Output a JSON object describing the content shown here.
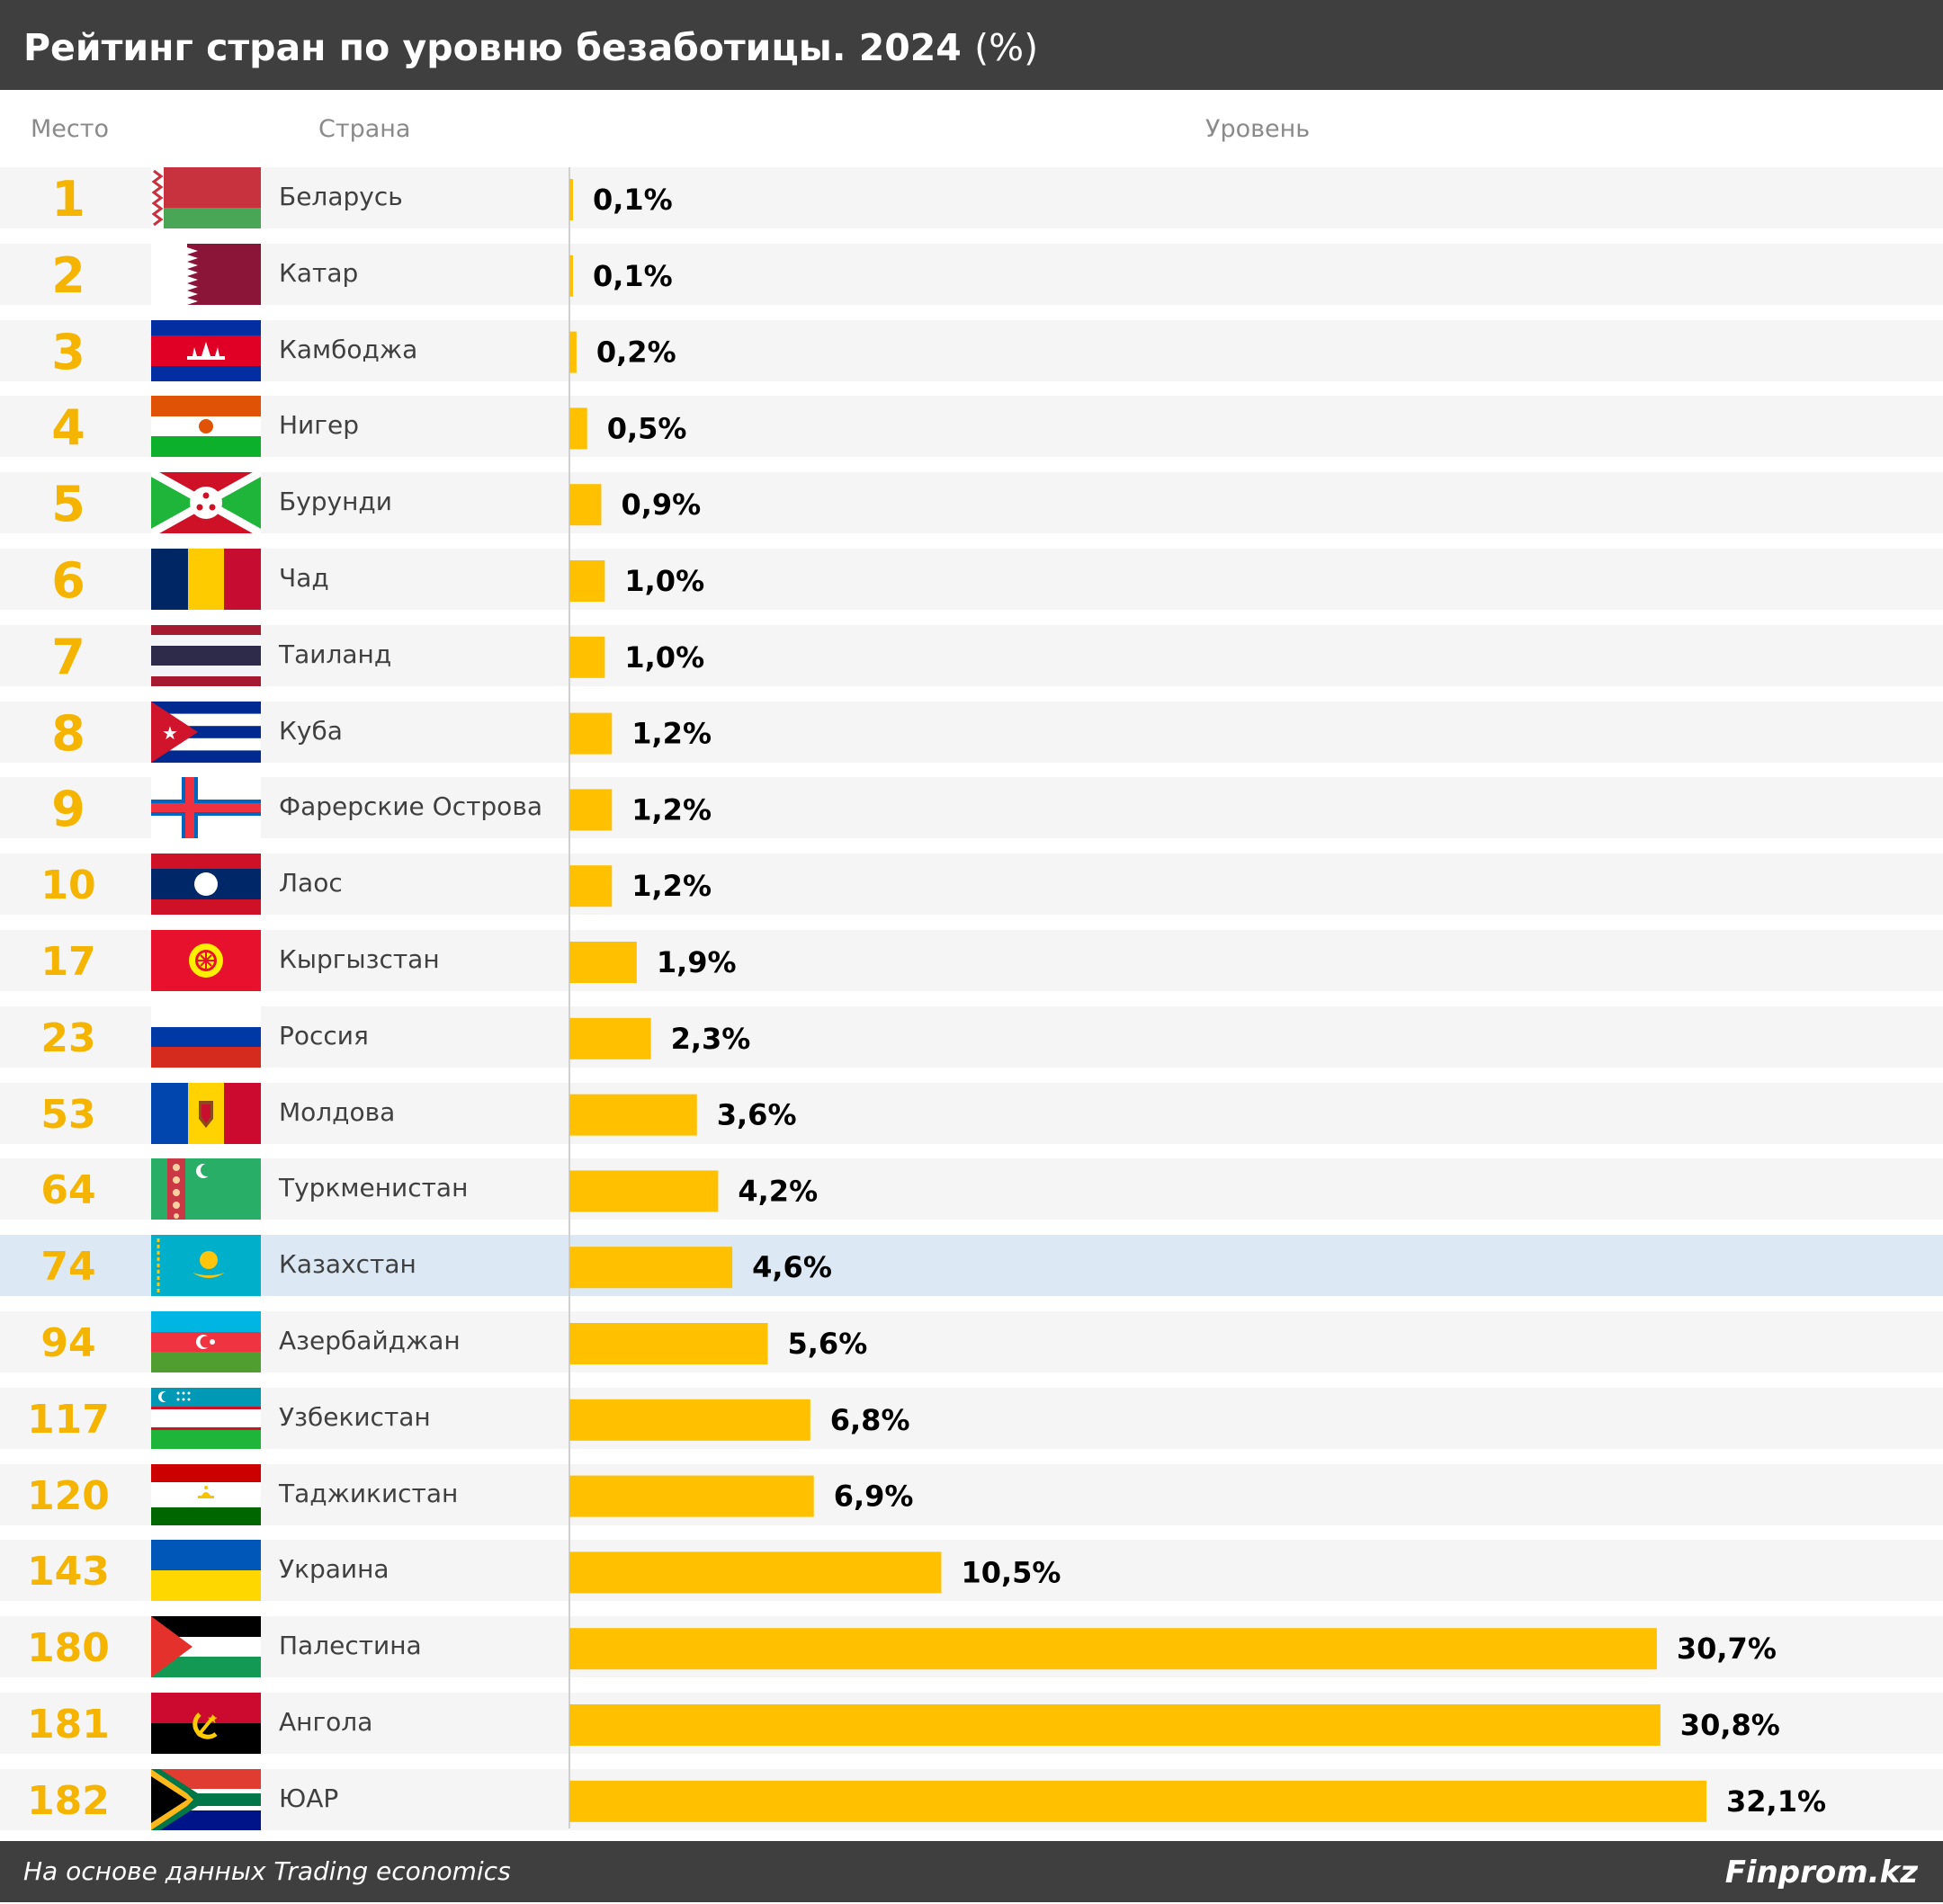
{
  "header": {
    "title": "Рейтинг стран по уровню безаботицы. 2024",
    "unit": "(%)"
  },
  "columns": {
    "rank": "Место",
    "country": "Страна",
    "level": "Уровень"
  },
  "footer": {
    "source": "На основе данных Trading economics",
    "brand": "Finprom.kz"
  },
  "colors": {
    "bar": "#ffc000",
    "rank": "#f5b400",
    "header_bg": "#3f3f3f",
    "row_bg": "#f5f5f5",
    "highlight_bg": "#dce9f5"
  },
  "chart_data": {
    "type": "bar",
    "orientation": "horizontal",
    "title": "Рейтинг стран по уровню безаботицы. 2024 (%)",
    "xlabel": "Уровень",
    "ylabel": "Страна",
    "xlim": [
      0,
      32.1
    ],
    "grid": false,
    "highlighted_category": "Казахстан",
    "rows": [
      {
        "rank": "1",
        "country": "Беларусь",
        "flag": "belarus-flag",
        "value": 0.1,
        "label": "0,1%"
      },
      {
        "rank": "2",
        "country": "Катар",
        "flag": "qatar-flag",
        "value": 0.1,
        "label": "0,1%"
      },
      {
        "rank": "3",
        "country": "Камбоджа",
        "flag": "cambodia-flag",
        "value": 0.2,
        "label": "0,2%"
      },
      {
        "rank": "4",
        "country": "Нигер",
        "flag": "niger-flag",
        "value": 0.5,
        "label": "0,5%"
      },
      {
        "rank": "5",
        "country": "Бурунди",
        "flag": "burundi-flag",
        "value": 0.9,
        "label": "0,9%"
      },
      {
        "rank": "6",
        "country": "Чад",
        "flag": "chad-flag",
        "value": 1.0,
        "label": "1,0%"
      },
      {
        "rank": "7",
        "country": "Таиланд",
        "flag": "thailand-flag",
        "value": 1.0,
        "label": "1,0%"
      },
      {
        "rank": "8",
        "country": "Куба",
        "flag": "cuba-flag",
        "value": 1.2,
        "label": "1,2%"
      },
      {
        "rank": "9",
        "country": "Фарерские Острова",
        "flag": "faroe-islands-flag",
        "value": 1.2,
        "label": "1,2%"
      },
      {
        "rank": "10",
        "country": "Лаос",
        "flag": "laos-flag",
        "value": 1.2,
        "label": "1,2%"
      },
      {
        "rank": "17",
        "country": "Кыргызстан",
        "flag": "kyrgyzstan-flag",
        "value": 1.9,
        "label": "1,9%"
      },
      {
        "rank": "23",
        "country": "Россия",
        "flag": "russia-flag",
        "value": 2.3,
        "label": "2,3%"
      },
      {
        "rank": "53",
        "country": "Молдова",
        "flag": "moldova-flag",
        "value": 3.6,
        "label": "3,6%"
      },
      {
        "rank": "64",
        "country": "Туркменистан",
        "flag": "turkmenistan-flag",
        "value": 4.2,
        "label": "4,2%"
      },
      {
        "rank": "74",
        "country": "Казахстан",
        "flag": "kazakhstan-flag",
        "value": 4.6,
        "label": "4,6%"
      },
      {
        "rank": "94",
        "country": "Азербайджан",
        "flag": "azerbaijan-flag",
        "value": 5.6,
        "label": "5,6%"
      },
      {
        "rank": "117",
        "country": "Узбекистан",
        "flag": "uzbekistan-flag",
        "value": 6.8,
        "label": "6,8%"
      },
      {
        "rank": "120",
        "country": "Таджикистан",
        "flag": "tajikistan-flag",
        "value": 6.9,
        "label": "6,9%"
      },
      {
        "rank": "143",
        "country": "Украина",
        "flag": "ukraine-flag",
        "value": 10.5,
        "label": "10,5%"
      },
      {
        "rank": "180",
        "country": "Палестина",
        "flag": "palestine-flag",
        "value": 30.7,
        "label": "30,7%"
      },
      {
        "rank": "181",
        "country": "Ангола",
        "flag": "angola-flag",
        "value": 30.8,
        "label": "30,8%"
      },
      {
        "rank": "182",
        "country": "ЮАР",
        "flag": "south-africa-flag",
        "value": 32.1,
        "label": "32,1%"
      }
    ]
  }
}
